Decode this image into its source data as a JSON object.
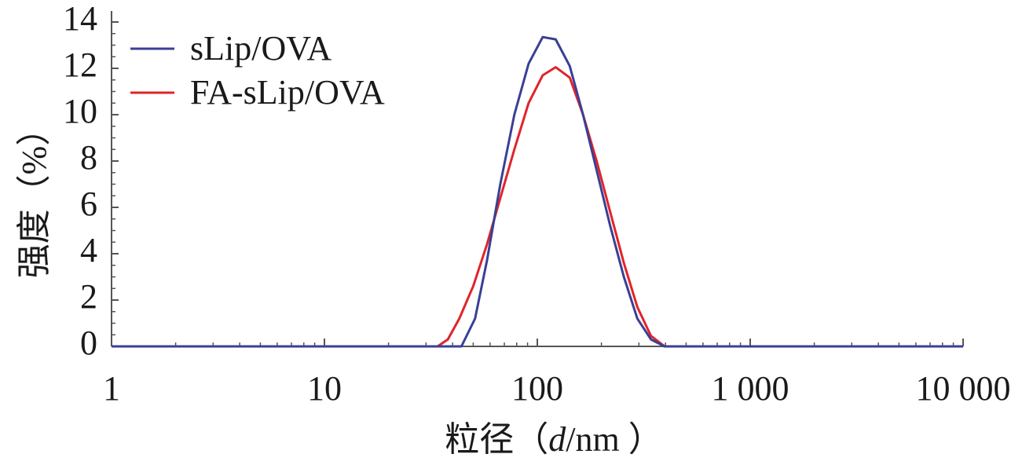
{
  "chart_data": {
    "type": "line",
    "title": "",
    "xlabel": {
      "prefix": "粒径（",
      "var": "d",
      "suffix": "/nm ）"
    },
    "ylabel": "强度（%）",
    "xscale": "log",
    "xlim": [
      1,
      10000
    ],
    "ylim": [
      0,
      14
    ],
    "x_ticks": [
      1,
      10,
      100,
      1000,
      10000
    ],
    "x_tick_labels": [
      "1",
      "10",
      "100",
      "1 000",
      "10 000"
    ],
    "y_ticks": [
      0,
      2,
      4,
      6,
      8,
      10,
      12,
      14
    ],
    "y_tick_labels": [
      "0",
      "2",
      "4",
      "6",
      "8",
      "10",
      "12",
      "14"
    ],
    "legend_position": "top-left",
    "series": [
      {
        "name": "sLip/OVA",
        "color": "#3a3f94",
        "x": [
          1,
          44,
          51,
          58,
          67,
          78,
          91,
          106,
          122,
          142,
          164,
          190,
          220,
          255,
          295,
          342,
          396,
          10000
        ],
        "y": [
          0,
          0,
          1.2,
          3.7,
          7.0,
          10.0,
          12.2,
          13.35,
          13.25,
          12.1,
          10.0,
          7.6,
          5.2,
          3.0,
          1.2,
          0.3,
          0,
          0
        ]
      },
      {
        "name": "FA-sLip/OVA",
        "color": "#e0242b",
        "x": [
          1,
          34,
          38,
          43,
          50,
          58,
          67,
          78,
          91,
          106,
          122,
          142,
          164,
          190,
          220,
          255,
          295,
          342,
          396,
          10000
        ],
        "y": [
          0,
          0,
          0.3,
          1.2,
          2.6,
          4.4,
          6.4,
          8.5,
          10.5,
          11.7,
          12.05,
          11.6,
          10.0,
          8.0,
          5.8,
          3.6,
          1.7,
          0.45,
          0,
          0
        ]
      }
    ]
  }
}
